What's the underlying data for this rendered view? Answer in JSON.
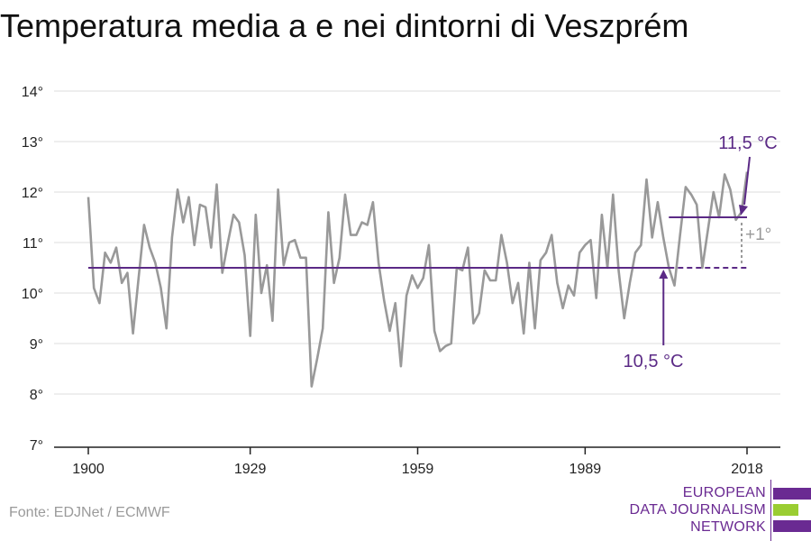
{
  "title": "Temperatura media a e nei dintorni di Veszprém",
  "source": "Fonte: EDJNet / ECMWF",
  "logo": {
    "line1": "EUROPEAN",
    "line2": "DATA JOURNALISM",
    "line3": "NETWORK",
    "colors": {
      "purple": "#6a2a92",
      "green": "#9acd32"
    }
  },
  "chart_data": {
    "type": "line",
    "title": "Temperatura media a e nei dintorni di Veszprém",
    "xlabel": "",
    "ylabel": "",
    "xlim": [
      1900,
      2018
    ],
    "ylim": [
      7,
      14
    ],
    "x_ticks": [
      1900,
      1929,
      1959,
      1989,
      2018
    ],
    "y_ticks": [
      7,
      8,
      9,
      10,
      11,
      12,
      13,
      14
    ],
    "y_tick_labels": [
      "7°",
      "8°",
      "9°",
      "10°",
      "11°",
      "12°",
      "13°",
      "14°"
    ],
    "grid": "horizontal",
    "colors": {
      "series": "#999999",
      "reference": "#5b2a86",
      "diff": "#9a9a9a",
      "grid": "#dddddd"
    },
    "series": [
      {
        "x": [
          1900,
          1901,
          1902,
          1903,
          1904,
          1905,
          1906,
          1907,
          1908,
          1909,
          1910,
          1911,
          1912,
          1913,
          1914,
          1915,
          1916,
          1917,
          1918,
          1919,
          1920,
          1921,
          1922,
          1923,
          1924,
          1925,
          1926,
          1927,
          1928,
          1929,
          1930,
          1931,
          1932,
          1933,
          1934,
          1935,
          1936,
          1937,
          1938,
          1939,
          1940,
          1941,
          1942,
          1943,
          1944,
          1945,
          1946,
          1947,
          1948,
          1949,
          1950,
          1951,
          1952,
          1953,
          1954,
          1955,
          1956,
          1957,
          1958,
          1959,
          1960,
          1961,
          1962,
          1963,
          1964,
          1965,
          1966,
          1967,
          1968,
          1969,
          1970,
          1971,
          1972,
          1973,
          1974,
          1975,
          1976,
          1977,
          1978,
          1979,
          1980,
          1981,
          1982,
          1983,
          1984,
          1985,
          1986,
          1987,
          1988,
          1989,
          1990,
          1991,
          1992,
          1993,
          1994,
          1995,
          1996,
          1997,
          1998,
          1999,
          2000,
          2001,
          2002,
          2003,
          2004,
          2005,
          2006,
          2007,
          2008,
          2009,
          2010,
          2011,
          2012,
          2013,
          2014,
          2015,
          2016,
          2017,
          2018
        ],
        "values": [
          11.9,
          10.1,
          9.8,
          10.8,
          10.6,
          10.9,
          10.2,
          10.4,
          9.2,
          10.3,
          11.35,
          10.9,
          10.6,
          10.1,
          9.3,
          11.1,
          12.05,
          11.4,
          11.9,
          10.95,
          11.75,
          11.7,
          10.9,
          12.15,
          10.4,
          11.0,
          11.55,
          11.4,
          10.75,
          9.15,
          11.55,
          10.0,
          10.55,
          9.45,
          12.05,
          10.55,
          11.0,
          11.05,
          10.7,
          10.7,
          8.15,
          8.7,
          9.3,
          11.6,
          10.2,
          10.7,
          11.95,
          11.15,
          11.15,
          11.4,
          11.35,
          11.8,
          10.6,
          9.85,
          9.25,
          9.8,
          8.55,
          9.95,
          10.35,
          10.1,
          10.3,
          10.95,
          9.25,
          8.85,
          8.95,
          9.0,
          10.5,
          10.45,
          10.9,
          9.4,
          9.6,
          10.45,
          10.25,
          10.25,
          11.15,
          10.6,
          9.8,
          10.2,
          9.2,
          10.6,
          9.3,
          10.65,
          10.8,
          11.15,
          10.2,
          9.7,
          10.15,
          9.95,
          10.8,
          10.95,
          11.05,
          9.9,
          11.55,
          10.5,
          11.95,
          10.45,
          9.5,
          10.2,
          10.8,
          10.95,
          12.25,
          11.1,
          11.8,
          11.1,
          10.5,
          10.15,
          11.15,
          12.1,
          11.95,
          11.75,
          10.5,
          11.25,
          12.0,
          11.5,
          12.35,
          12.05,
          11.45,
          11.6,
          12.4
        ]
      }
    ],
    "reference_lines": [
      {
        "label": "10,5 °C",
        "value": 10.5,
        "x_start": 1900,
        "x_solid_end": 2004,
        "x_end": 2018
      },
      {
        "label": "11,5 °C",
        "value": 11.5,
        "x_start": 2004,
        "x_end": 2018
      }
    ],
    "difference_label": "+1°"
  }
}
